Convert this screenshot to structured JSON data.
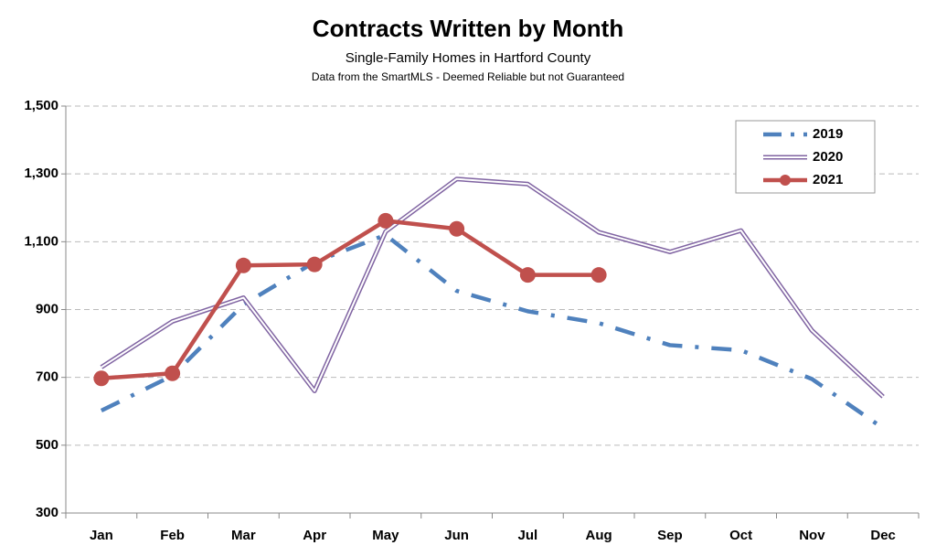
{
  "chart_data": {
    "type": "line",
    "title": "Contracts Written by Month",
    "subtitle": "Single-Family Homes in Hartford County",
    "note": "Data from the SmartMLS - Deemed Reliable but not Guaranteed",
    "categories": [
      "Jan",
      "Feb",
      "Mar",
      "Apr",
      "May",
      "Jun",
      "Jul",
      "Aug",
      "Sep",
      "Oct",
      "Nov",
      "Dec"
    ],
    "series": [
      {
        "name": "2019",
        "color": "#4f81bd",
        "style": "dash-dot",
        "values": [
          602,
          705,
          915,
          1040,
          1120,
          955,
          895,
          860,
          795,
          780,
          695,
          550
        ]
      },
      {
        "name": "2020",
        "color": "#8064a2",
        "style": "double",
        "values": [
          730,
          865,
          935,
          660,
          1130,
          1285,
          1270,
          1128,
          1070,
          1133,
          838,
          643
        ]
      },
      {
        "name": "2021",
        "color": "#c0504d",
        "style": "solid-marker",
        "values": [
          697,
          712,
          1030,
          1033,
          1162,
          1138,
          1002,
          1002,
          null,
          null,
          null,
          null
        ]
      }
    ],
    "ylim": [
      300,
      1500
    ],
    "yticks": [
      300,
      500,
      700,
      900,
      {
        "value": 1100,
        "label": "1,100"
      },
      {
        "value": 1300,
        "label": "1,300"
      },
      {
        "value": 1500,
        "label": "1,500"
      }
    ],
    "grid": true,
    "legend": "top-right"
  }
}
